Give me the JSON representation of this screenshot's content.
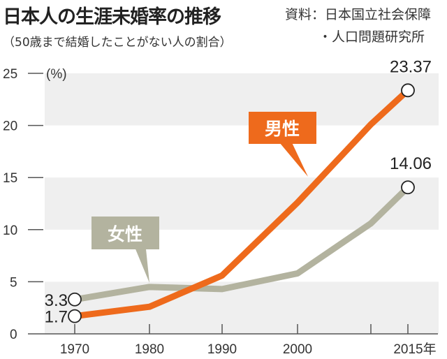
{
  "header": {
    "title": "日本人の生涯未婚率の推移",
    "subtitle": "（50歳まで結婚したことがない人の割合）",
    "source_line1": "資料：日本国立社会保障",
    "source_line2": "・人口問題研究所"
  },
  "chart_data": {
    "type": "line",
    "title": "日本人の生涯未婚率の推移",
    "subtitle": "（50歳まで結婚したことがない人の割合）",
    "ylabel": "(%)",
    "xlabel": "",
    "x": [
      1970,
      1980,
      1990,
      2000,
      2010,
      2015
    ],
    "x_tick_labels": [
      "1970",
      "1980",
      "1990",
      "2000",
      "2015年"
    ],
    "x_tick_values": [
      1970,
      1980,
      1990,
      2000,
      2015
    ],
    "y_ticks": [
      0,
      5,
      10,
      15,
      20,
      25
    ],
    "ylim": [
      0,
      25
    ],
    "xlim": [
      1964,
      2019
    ],
    "grid": "alternating horizontal bands",
    "series": [
      {
        "name": "男性",
        "color": "#ee6a1c",
        "values": [
          1.7,
          2.6,
          5.6,
          12.6,
          20.1,
          23.37
        ]
      },
      {
        "name": "女性",
        "color": "#b3b39f",
        "values": [
          3.3,
          4.5,
          4.3,
          5.8,
          10.6,
          14.06
        ]
      }
    ],
    "data_labels": [
      {
        "series": "男性",
        "x": 1970,
        "text": "1.7"
      },
      {
        "series": "女性",
        "x": 1970,
        "text": "3.3"
      },
      {
        "series": "男性",
        "x": 2015,
        "text": "23.37"
      },
      {
        "series": "女性",
        "x": 2015,
        "text": "14.06"
      }
    ],
    "band_color": "#efefef"
  }
}
